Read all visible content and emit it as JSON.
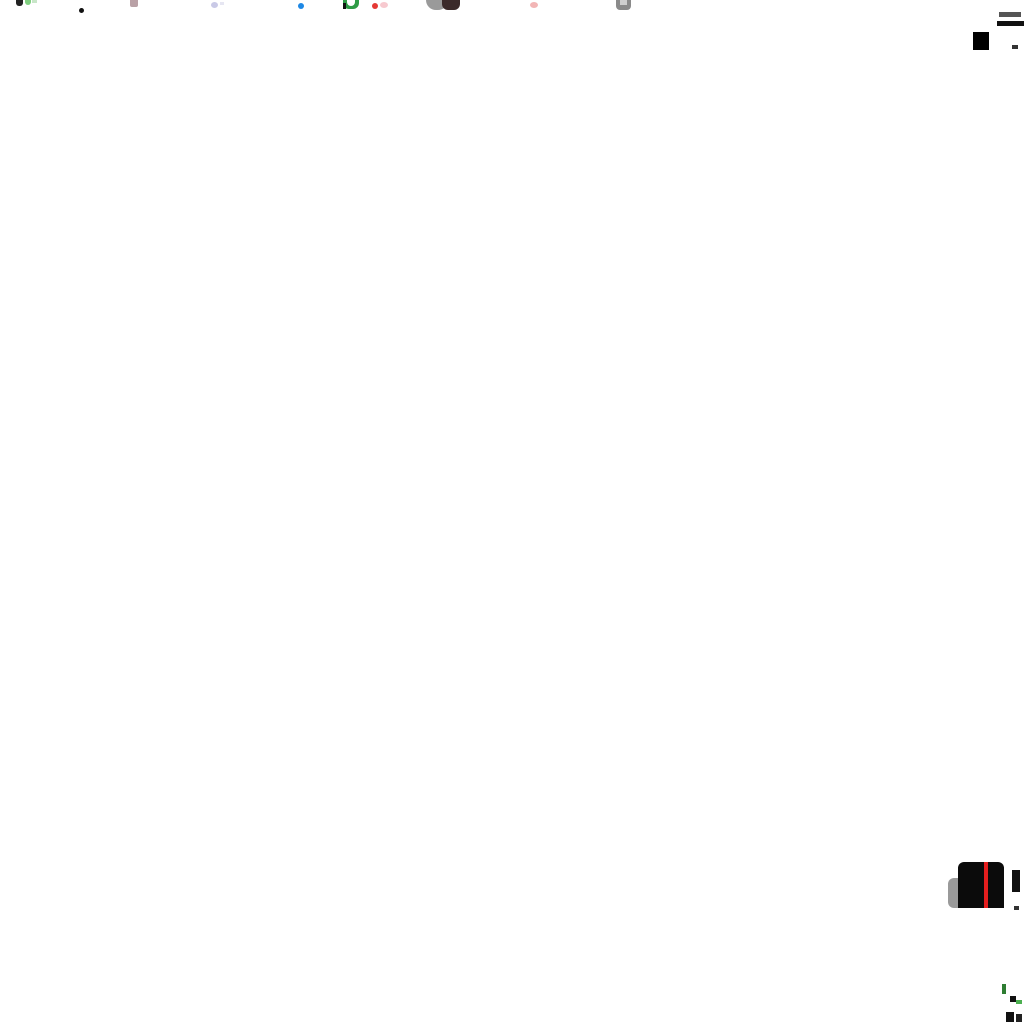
{
  "screen": {
    "background": "#ffffff",
    "icons": [
      "app-icon-1",
      "dot-icon",
      "app-icon-2",
      "app-icon-3",
      "app-icon-4",
      "app-icon-5",
      "app-icon-6",
      "app-icon-7",
      "app-icon-8",
      "app-icon-9"
    ]
  },
  "thumbnail": {
    "accent": "#e41e1e",
    "base": "#0b0b0b"
  }
}
